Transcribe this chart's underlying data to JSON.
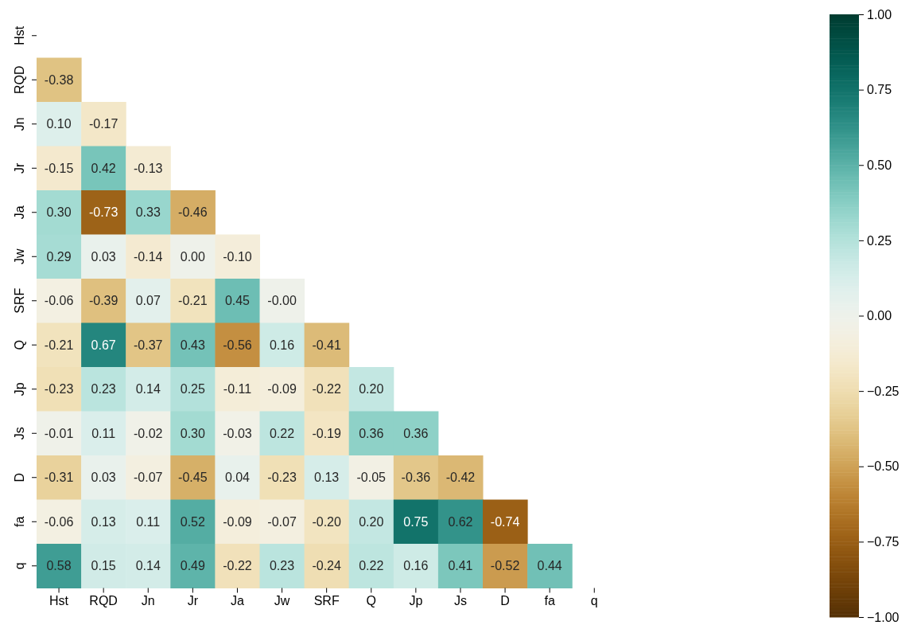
{
  "chart_data": {
    "type": "heatmap",
    "categories": [
      "Hst",
      "RQD",
      "Jn",
      "Jr",
      "Ja",
      "Jw",
      "SRF",
      "Q",
      "Jp",
      "Js",
      "D",
      "fa",
      "q"
    ],
    "y_categories": [
      "Hst",
      "RQD",
      "Jn",
      "Jr",
      "Ja",
      "Jw",
      "SRF",
      "Q",
      "Jp",
      "Js",
      "D",
      "fa",
      "q"
    ],
    "cells": [
      [
        null,
        null,
        null,
        null,
        null,
        null,
        null,
        null,
        null,
        null,
        null,
        null,
        null
      ],
      [
        -0.38,
        null,
        null,
        null,
        null,
        null,
        null,
        null,
        null,
        null,
        null,
        null,
        null
      ],
      [
        0.1,
        -0.17,
        null,
        null,
        null,
        null,
        null,
        null,
        null,
        null,
        null,
        null,
        null
      ],
      [
        -0.15,
        0.42,
        -0.13,
        null,
        null,
        null,
        null,
        null,
        null,
        null,
        null,
        null,
        null
      ],
      [
        0.3,
        -0.73,
        0.33,
        -0.46,
        null,
        null,
        null,
        null,
        null,
        null,
        null,
        null,
        null
      ],
      [
        0.29,
        0.03,
        -0.14,
        0.0,
        -0.1,
        null,
        null,
        null,
        null,
        null,
        null,
        null,
        null
      ],
      [
        -0.06,
        -0.39,
        0.07,
        -0.21,
        0.45,
        -0.0,
        null,
        null,
        null,
        null,
        null,
        null,
        null
      ],
      [
        -0.21,
        0.67,
        -0.37,
        0.43,
        -0.56,
        0.16,
        -0.41,
        null,
        null,
        null,
        null,
        null,
        null
      ],
      [
        -0.23,
        0.23,
        0.14,
        0.25,
        -0.11,
        -0.09,
        -0.22,
        0.2,
        null,
        null,
        null,
        null,
        null
      ],
      [
        -0.01,
        0.11,
        -0.02,
        0.3,
        -0.03,
        0.22,
        -0.19,
        0.36,
        0.36,
        null,
        null,
        null,
        null
      ],
      [
        -0.31,
        0.03,
        -0.07,
        -0.45,
        0.04,
        -0.23,
        0.13,
        -0.05,
        -0.36,
        -0.42,
        null,
        null,
        null
      ],
      [
        -0.06,
        0.13,
        0.11,
        0.52,
        -0.09,
        -0.07,
        -0.2,
        0.2,
        0.75,
        0.62,
        -0.74,
        null,
        null
      ],
      [
        0.58,
        0.15,
        0.14,
        0.49,
        -0.22,
        0.23,
        -0.24,
        0.22,
        0.16,
        0.41,
        -0.52,
        0.44,
        null
      ]
    ],
    "cell_labels": [
      [
        null,
        null,
        null,
        null,
        null,
        null,
        null,
        null,
        null,
        null,
        null,
        null,
        null
      ],
      [
        "-0.38",
        null,
        null,
        null,
        null,
        null,
        null,
        null,
        null,
        null,
        null,
        null,
        null
      ],
      [
        "0.10",
        "-0.17",
        null,
        null,
        null,
        null,
        null,
        null,
        null,
        null,
        null,
        null,
        null
      ],
      [
        "-0.15",
        "0.42",
        "-0.13",
        null,
        null,
        null,
        null,
        null,
        null,
        null,
        null,
        null,
        null
      ],
      [
        "0.30",
        "-0.73",
        "0.33",
        "-0.46",
        null,
        null,
        null,
        null,
        null,
        null,
        null,
        null,
        null
      ],
      [
        "0.29",
        "0.03",
        "-0.14",
        "0.00",
        "-0.10",
        null,
        null,
        null,
        null,
        null,
        null,
        null,
        null
      ],
      [
        "-0.06",
        "-0.39",
        "0.07",
        "-0.21",
        "0.45",
        "-0.00",
        null,
        null,
        null,
        null,
        null,
        null,
        null
      ],
      [
        "-0.21",
        "0.67",
        "-0.37",
        "0.43",
        "-0.56",
        "0.16",
        "-0.41",
        null,
        null,
        null,
        null,
        null,
        null
      ],
      [
        "-0.23",
        "0.23",
        "0.14",
        "0.25",
        "-0.11",
        "-0.09",
        "-0.22",
        "0.20",
        null,
        null,
        null,
        null,
        null
      ],
      [
        "-0.01",
        "0.11",
        "-0.02",
        "0.30",
        "-0.03",
        "0.22",
        "-0.19",
        "0.36",
        "0.36",
        null,
        null,
        null,
        null
      ],
      [
        "-0.31",
        "0.03",
        "-0.07",
        "-0.45",
        "0.04",
        "-0.23",
        "0.13",
        "-0.05",
        "-0.36",
        "-0.42",
        null,
        null,
        null
      ],
      [
        "-0.06",
        "0.13",
        "0.11",
        "0.52",
        "-0.09",
        "-0.07",
        "-0.20",
        "0.20",
        "0.75",
        "0.62",
        "-0.74",
        null,
        null
      ],
      [
        "0.58",
        "0.15",
        "0.14",
        "0.49",
        "-0.22",
        "0.23",
        "-0.24",
        "0.22",
        "0.16",
        "0.41",
        "-0.52",
        "0.44",
        null
      ]
    ],
    "data_labels": true,
    "clim": [
      -1,
      1
    ],
    "cticks": [
      {
        "value": -1,
        "label": "−1.00"
      },
      {
        "value": -0.75,
        "label": "−0.75"
      },
      {
        "value": -0.5,
        "label": "−0.50"
      },
      {
        "value": -0.25,
        "label": "−0.25"
      },
      {
        "value": 0,
        "label": "0.00"
      },
      {
        "value": 0.25,
        "label": "0.25"
      },
      {
        "value": 0.5,
        "label": "0.50"
      },
      {
        "value": 0.75,
        "label": "0.75"
      },
      {
        "value": 1,
        "label": "1.00"
      }
    ]
  }
}
